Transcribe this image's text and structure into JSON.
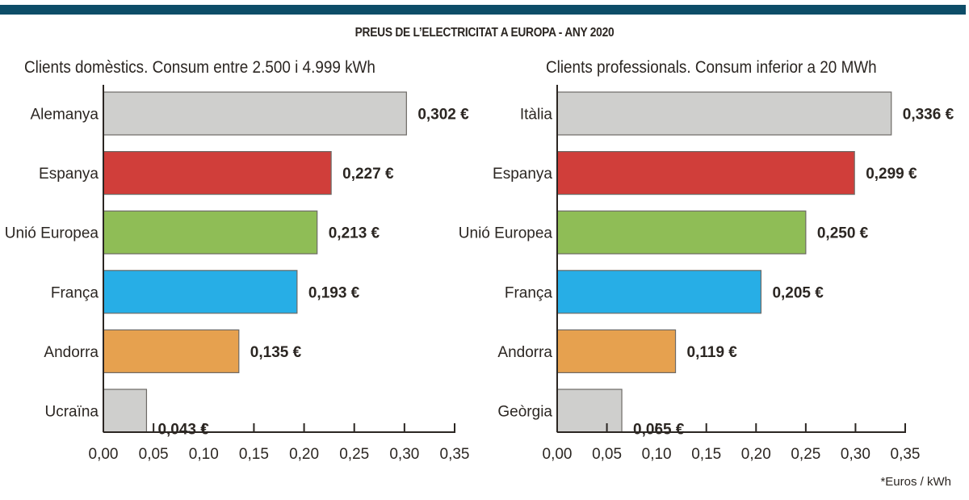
{
  "header": {
    "title": "PREUS DE L’ELECTRICITAT A EUROPA - ANY 2020",
    "accent_bar_color": "#0d4d68"
  },
  "footnote": "*Euros / kWh",
  "chart_data": [
    {
      "type": "bar",
      "orientation": "horizontal",
      "title": "Clients domèstics. Consum entre 2.500 i 4.999 kWh",
      "categories": [
        "Alemanya",
        "Espanya",
        "Unió Europea",
        "França",
        "Andorra",
        "Ucraïna"
      ],
      "values": [
        0.302,
        0.227,
        0.213,
        0.193,
        0.135,
        0.043
      ],
      "value_labels": [
        "0,302 €",
        "0,227 €",
        "0,213 €",
        "0,193 €",
        "0,135 €",
        "0,043 €"
      ],
      "colors": [
        "#cfcfcd",
        "#d03e3a",
        "#8fbd56",
        "#27aee6",
        "#e6a14f",
        "#cfcfcd"
      ],
      "xlim": [
        0,
        0.35
      ],
      "xticks": [
        0,
        0.05,
        0.1,
        0.15,
        0.2,
        0.25,
        0.3,
        0.35
      ],
      "xtick_labels": [
        "0,00",
        "0,05",
        "0,10",
        "0,15",
        "0,20",
        "0,25",
        "0,30",
        "0,35"
      ],
      "xlabel": "",
      "ylabel": "",
      "grid": false,
      "legend": "none"
    },
    {
      "type": "bar",
      "orientation": "horizontal",
      "title": "Clients professionals. Consum inferior a 20 MWh",
      "categories": [
        "Itàlia",
        "Espanya",
        "Unió Europea",
        "França",
        "Andorra",
        "Geòrgia"
      ],
      "values": [
        0.336,
        0.299,
        0.25,
        0.205,
        0.119,
        0.065
      ],
      "value_labels": [
        "0,336 €",
        "0,299 €",
        "0,250 €",
        "0,205 €",
        "0,119 €",
        "0,065 €"
      ],
      "colors": [
        "#cfcfcd",
        "#d03e3a",
        "#8fbd56",
        "#27aee6",
        "#e6a14f",
        "#cfcfcd"
      ],
      "xlim": [
        0,
        0.35
      ],
      "xticks": [
        0,
        0.05,
        0.1,
        0.15,
        0.2,
        0.25,
        0.3,
        0.35
      ],
      "xtick_labels": [
        "0,00",
        "0,05",
        "0,10",
        "0,15",
        "0,20",
        "0,25",
        "0,30",
        "0,35"
      ],
      "xlabel": "",
      "ylabel": "",
      "grid": false,
      "legend": "none"
    }
  ]
}
